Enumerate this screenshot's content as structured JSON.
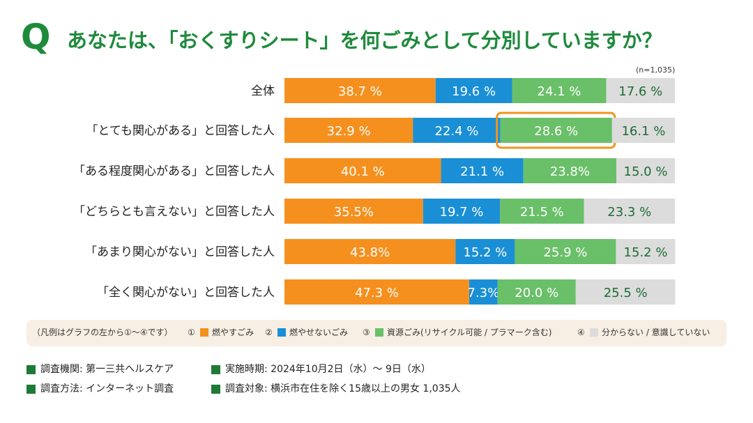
{
  "title": {
    "q_mark": "Q",
    "text": "あなたは、「おくすりシート」を何ごみとして分別していますか？",
    "n_note": "(n=1,035)"
  },
  "colors": {
    "burnable": "#f5901e",
    "non_burnable": "#1a8fd5",
    "resource": "#6abf69",
    "unknown": "#dcdcdc",
    "highlight": "#f0951e",
    "title_green": "#1e8a3c"
  },
  "chart_data": {
    "type": "bar",
    "orientation": "horizontal-stacked",
    "categories": [
      "全体",
      "「とても関心がある」と回答した人",
      "「ある程度関心がある」と回答した人",
      "「どちらとも言えない」と回答した人",
      "「あまり関心がない」と回答した人",
      "「全く関心がない」と回答した人"
    ],
    "series": [
      {
        "name": "燃やすごみ",
        "values": [
          38.7,
          32.9,
          40.1,
          35.5,
          43.8,
          47.3
        ],
        "labels": [
          "38.7 %",
          "32.9 %",
          "40.1 %",
          "35.5%",
          "43.8%",
          "47.3 %"
        ]
      },
      {
        "name": "燃やせないごみ",
        "values": [
          19.6,
          22.4,
          21.1,
          19.7,
          15.2,
          7.3
        ],
        "labels": [
          "19.6 %",
          "22.4 %",
          "21.1 %",
          "19.7 %",
          "15.2 %",
          "7.3%"
        ]
      },
      {
        "name": "資源ごみ(リサイクル可能 / プラマーク含む)",
        "values": [
          24.1,
          28.6,
          23.8,
          21.5,
          25.9,
          20.0
        ],
        "labels": [
          "24.1 %",
          "28.6 %",
          "23.8%",
          "21.5 %",
          "25.9 %",
          "20.0 %"
        ]
      },
      {
        "name": "分からない / 意識していない",
        "values": [
          17.6,
          16.1,
          15.0,
          23.3,
          15.2,
          25.5
        ],
        "labels": [
          "17.6 %",
          "16.1 %",
          "15.0 %",
          "23.3 %",
          "15.2 %",
          "25.5 %"
        ]
      }
    ],
    "highlight": {
      "category_index": 1,
      "series_index": 2
    },
    "xlim": [
      0,
      100
    ]
  },
  "legend": {
    "note": "（凡例はグラフの左から①〜④です）",
    "items": [
      {
        "num": "①",
        "label": "燃やすごみ"
      },
      {
        "num": "②",
        "label": "燃やせないごみ"
      },
      {
        "num": "③",
        "label": "資源ごみ(リサイクル可能 / プラマーク含む)"
      },
      {
        "num": "④",
        "label": "分からない / 意識していない"
      }
    ]
  },
  "footer": {
    "survey_org": "調査機関: 第一三共ヘルスケア",
    "survey_period": "実施時期: 2024年10月2日（水）〜 9日（水）",
    "survey_method": "調査方法: インターネット調査",
    "survey_target": "調査対象: 横浜市在住を除く15歳以上の男女 1,035人"
  }
}
